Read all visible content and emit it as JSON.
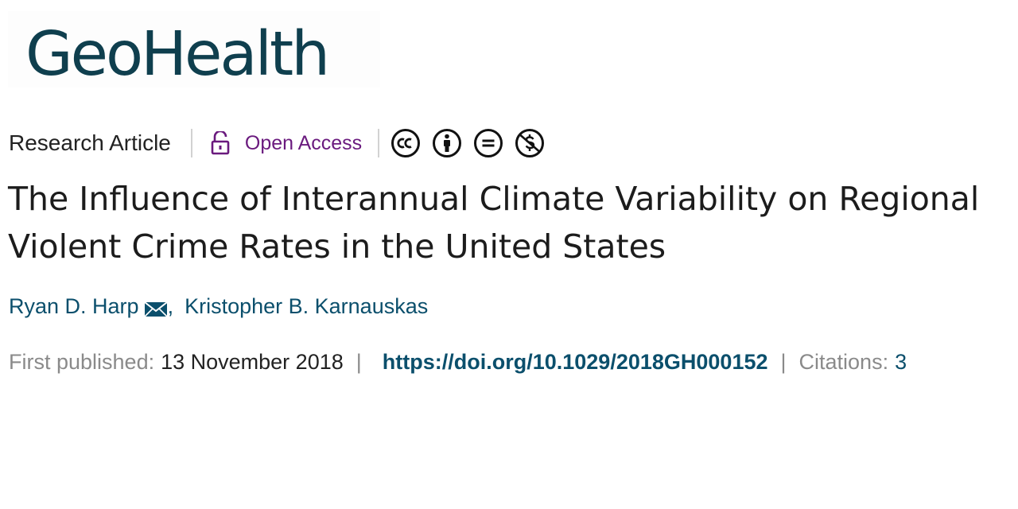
{
  "journal": {
    "logo_text": "GeoHealth"
  },
  "meta": {
    "article_type": "Research Article",
    "access_label": "Open Access",
    "license_icons": [
      "cc-icon",
      "attribution-icon",
      "no-derivatives-icon",
      "non-commercial-icon"
    ]
  },
  "article": {
    "title": "The Influence of Interannual Climate Variability on Regional Violent Crime Rates in the United States",
    "authors": [
      {
        "name": "Ryan D. Harp",
        "corresponding": true
      },
      {
        "name": "Kristopher B. Karnauskas",
        "corresponding": false
      }
    ],
    "author_separator": ",",
    "published_label": "First published:",
    "published_date": "13 November 2018",
    "doi": "https://doi.org/10.1029/2018GH000152",
    "citations_label": "Citations:",
    "citations_count": "3",
    "separator": "|"
  },
  "colors": {
    "accent": "#0b4f6c",
    "logo": "#0f3f4e",
    "open_access": "#6a1a7e"
  }
}
